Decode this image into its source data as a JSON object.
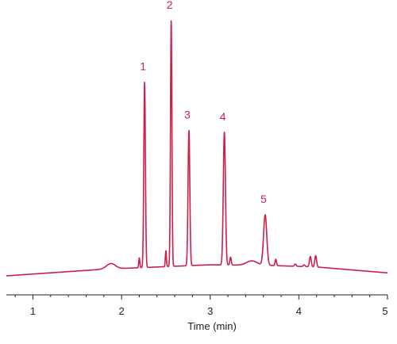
{
  "chart_data": {
    "type": "line",
    "xlabel": "Time (min)",
    "ylabel": "",
    "xlim": [
      0.7,
      5.0
    ],
    "ylim": [
      0,
      100
    ],
    "grid": false,
    "x_ticks": [
      {
        "value": 1,
        "label": "1"
      },
      {
        "value": 2,
        "label": "2"
      },
      {
        "value": 3,
        "label": "3"
      },
      {
        "value": 4,
        "label": "4"
      },
      {
        "value": 5,
        "label": "5"
      }
    ],
    "minor_tick_step": 0.2,
    "color": "#cc1f4a",
    "baseline": [
      {
        "x": 0.7,
        "y": 0.0
      },
      {
        "x": 1.8,
        "y": 2.7
      },
      {
        "x": 2.2,
        "y": 3.3
      },
      {
        "x": 3.0,
        "y": 4.5
      },
      {
        "x": 3.7,
        "y": 4.2
      },
      {
        "x": 4.2,
        "y": 3.6
      },
      {
        "x": 5.0,
        "y": 1.2
      }
    ],
    "peaks": [
      {
        "label": "1",
        "x": 2.26,
        "y": 75.5,
        "width": 0.009
      },
      {
        "label": "2",
        "x": 2.56,
        "y": 100.0,
        "width": 0.008
      },
      {
        "label": "3",
        "x": 2.76,
        "y": 55.0,
        "width": 0.01
      },
      {
        "label": "4",
        "x": 3.16,
        "y": 54.0,
        "width": 0.012
      },
      {
        "label": "5",
        "x": 3.62,
        "y": 20.5,
        "width": 0.018
      }
    ],
    "minor_features": [
      {
        "x": 1.88,
        "y": 2.2,
        "width": 0.05
      },
      {
        "x": 2.2,
        "y": 4.0,
        "width": 0.006
      },
      {
        "x": 2.5,
        "y": 6.5,
        "width": 0.006
      },
      {
        "x": 3.23,
        "y": 3.2,
        "width": 0.008
      },
      {
        "x": 3.47,
        "y": 1.8,
        "width": 0.06
      },
      {
        "x": 3.74,
        "y": 2.6,
        "width": 0.008
      },
      {
        "x": 3.96,
        "y": 0.9,
        "width": 0.01
      },
      {
        "x": 4.06,
        "y": 0.7,
        "width": 0.01
      },
      {
        "x": 4.13,
        "y": 4.2,
        "width": 0.01
      },
      {
        "x": 4.19,
        "y": 4.6,
        "width": 0.01
      }
    ]
  }
}
